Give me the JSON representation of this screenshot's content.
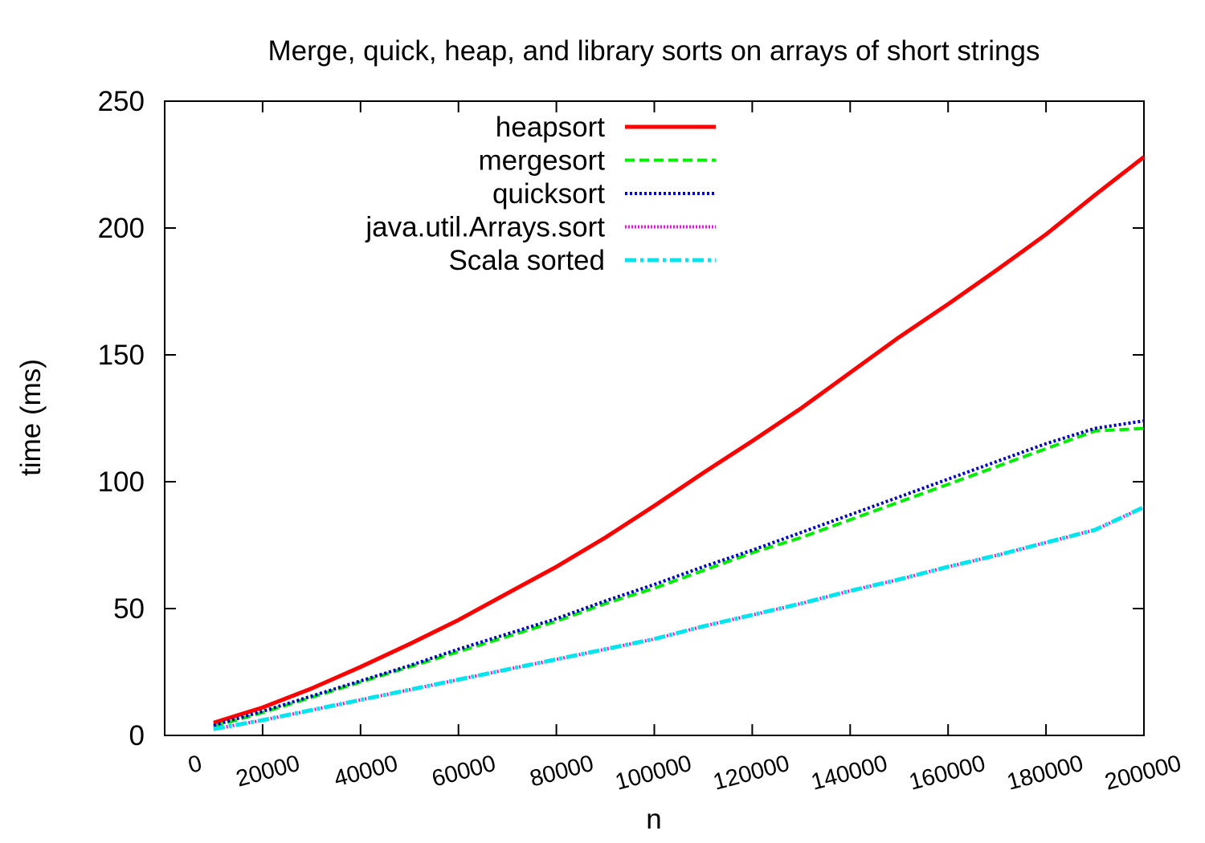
{
  "chart_data": {
    "type": "line",
    "title": "Merge, quick, heap, and library sorts on arrays of short strings",
    "xlabel": "n",
    "ylabel": "time (ms)",
    "xlim": [
      0,
      200000
    ],
    "ylim": [
      0,
      250
    ],
    "xticks": [
      "0",
      "20000",
      "40000",
      "60000",
      "80000",
      "100000",
      "120000",
      "140000",
      "160000",
      "180000",
      "200000"
    ],
    "yticks": [
      "0",
      "50",
      "100",
      "150",
      "200",
      "250"
    ],
    "legend_position": "top-center",
    "grid": false,
    "x": [
      10000,
      20000,
      30000,
      40000,
      50000,
      60000,
      70000,
      80000,
      90000,
      100000,
      110000,
      120000,
      130000,
      140000,
      150000,
      160000,
      170000,
      180000,
      190000,
      200000
    ],
    "series": [
      {
        "name": "heapsort",
        "color": "#ff0000",
        "style": "solid",
        "values": [
          5,
          11,
          18.5,
          27,
          36,
          45.5,
          56,
          66.5,
          78,
          90.5,
          103.5,
          116,
          129,
          143,
          157,
          170,
          183.5,
          197.5,
          213,
          228
        ]
      },
      {
        "name": "mergesort",
        "color": "#00ee00",
        "style": "dashed",
        "values": [
          3.5,
          9,
          15,
          21,
          27,
          33,
          39,
          45,
          52,
          58,
          65,
          72,
          78,
          85,
          92,
          99,
          106,
          113,
          120,
          121
        ]
      },
      {
        "name": "quicksort",
        "color": "#0000cc",
        "style": "dotted",
        "values": [
          4,
          9.5,
          15.5,
          21.5,
          27.5,
          34,
          40,
          46,
          53,
          59.5,
          66.5,
          73,
          80,
          87,
          94,
          101,
          108,
          115,
          121,
          124
        ]
      },
      {
        "name": "java.util.Arrays.sort",
        "color": "#ff00ff",
        "style": "densedot",
        "values": [
          2.5,
          6,
          10,
          14,
          18,
          22,
          26,
          30,
          34,
          38,
          43,
          47.5,
          52,
          57,
          61.5,
          66.5,
          71,
          76,
          81,
          90
        ]
      },
      {
        "name": "Scala sorted",
        "color": "#00e5ee",
        "style": "dashdot",
        "values": [
          2.5,
          6,
          10,
          14,
          18,
          22,
          26,
          30,
          34,
          38,
          43,
          47.5,
          52,
          57,
          61.5,
          66.5,
          71,
          76,
          81,
          90
        ]
      }
    ]
  }
}
